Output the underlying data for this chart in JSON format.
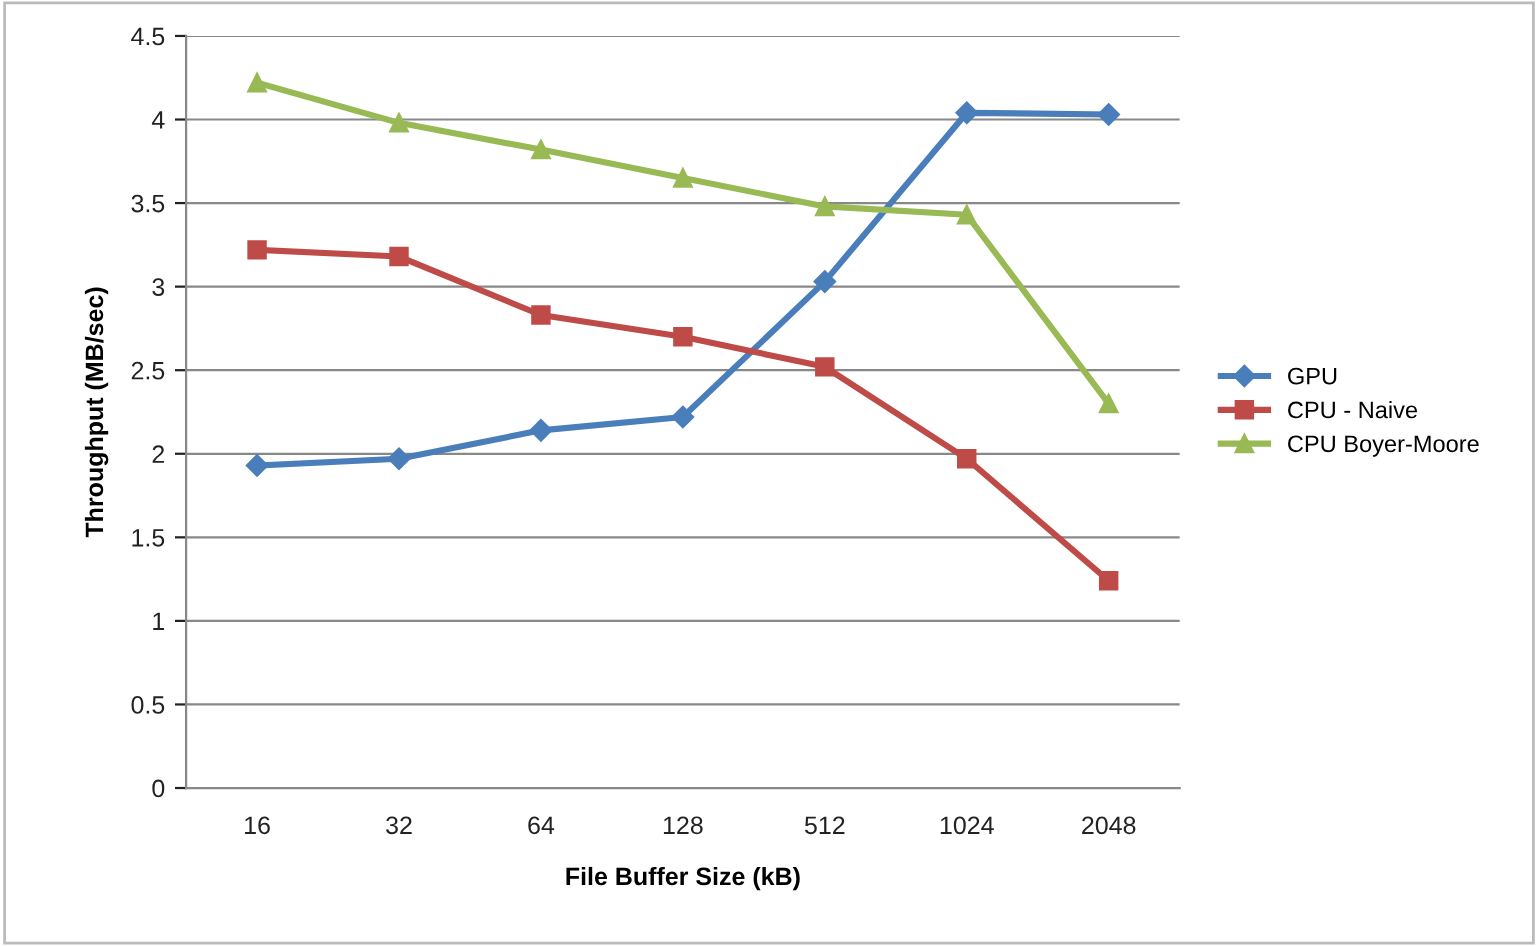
{
  "chart_data": {
    "type": "line",
    "xlabel": "File Buffer Size (kB)",
    "ylabel": "Throughput (MB/sec)",
    "categories": [
      "16",
      "32",
      "64",
      "128",
      "512",
      "1024",
      "2048"
    ],
    "series": [
      {
        "name": "GPU",
        "color": "#4a7ebb",
        "marker": "diamond",
        "values": [
          1.93,
          1.97,
          2.14,
          2.22,
          3.03,
          4.04,
          4.03
        ]
      },
      {
        "name": "CPU - Naive",
        "color": "#be4b48",
        "marker": "square",
        "values": [
          3.22,
          3.18,
          2.83,
          2.7,
          2.52,
          1.97,
          1.24
        ]
      },
      {
        "name": "CPU Boyer-Moore",
        "color": "#98b954",
        "marker": "triangle",
        "values": [
          4.22,
          3.98,
          3.82,
          3.65,
          3.48,
          3.43,
          2.3
        ]
      }
    ],
    "ylim": [
      0,
      4.5
    ],
    "yticks": [
      0,
      0.5,
      1,
      1.5,
      2,
      2.5,
      3,
      3.5,
      4,
      4.5
    ],
    "grid": "y",
    "legend": "right",
    "line_style": "solid"
  }
}
